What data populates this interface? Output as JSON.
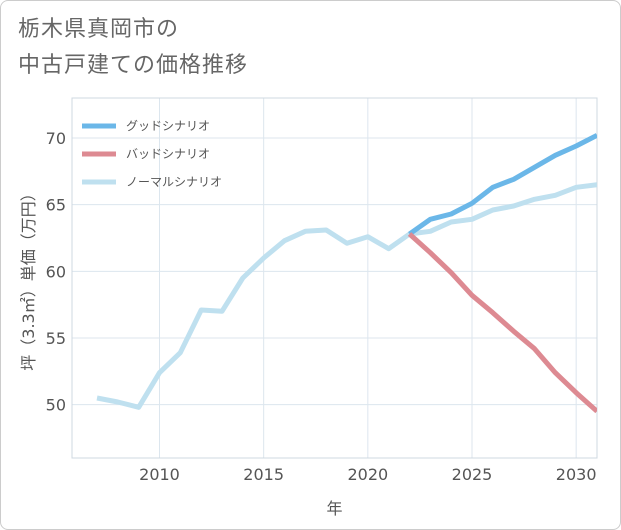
{
  "title_line1": "栃木県真岡市の",
  "title_line2": "中古戸建ての価格推移",
  "chart_data": {
    "type": "line",
    "title": "栃木県真岡市の中古戸建ての価格推移",
    "xlabel": "年",
    "ylabel": "坪（3.3㎡）単価（万円）",
    "xlim": [
      2005.8,
      2031
    ],
    "ylim": [
      46,
      73
    ],
    "xticks": [
      2010,
      2015,
      2020,
      2025,
      2030
    ],
    "yticks": [
      50,
      55,
      60,
      65,
      70
    ],
    "legend_position": "top-left",
    "series": [
      {
        "name": "グッドシナリオ",
        "color": "#6bb7e8",
        "x": [
          2022,
          2023,
          2024,
          2025,
          2026,
          2027,
          2028,
          2029,
          2030,
          2031
        ],
        "values": [
          62.8,
          63.9,
          64.3,
          65.1,
          66.3,
          66.9,
          67.8,
          68.7,
          69.4,
          70.2
        ]
      },
      {
        "name": "バッドシナリオ",
        "color": "#dd8a92",
        "x": [
          2022,
          2023,
          2024,
          2025,
          2026,
          2027,
          2028,
          2029,
          2030,
          2031
        ],
        "values": [
          62.8,
          61.4,
          59.9,
          58.2,
          56.9,
          55.5,
          54.2,
          52.4,
          50.9,
          49.5
        ]
      },
      {
        "name": "ノーマルシナリオ",
        "color": "#bfe0ef",
        "x": [
          2007,
          2008,
          2009,
          2010,
          2011,
          2012,
          2013,
          2014,
          2015,
          2016,
          2017,
          2018,
          2019,
          2020,
          2021,
          2022,
          2023,
          2024,
          2025,
          2026,
          2027,
          2028,
          2029,
          2030,
          2031
        ],
        "values": [
          50.5,
          50.2,
          49.8,
          52.4,
          53.9,
          57.1,
          57.0,
          59.5,
          61.0,
          62.3,
          63.0,
          63.1,
          62.1,
          62.6,
          61.7,
          62.8,
          63.0,
          63.7,
          63.9,
          64.6,
          64.9,
          65.4,
          65.7,
          66.3,
          66.5
        ]
      }
    ]
  }
}
